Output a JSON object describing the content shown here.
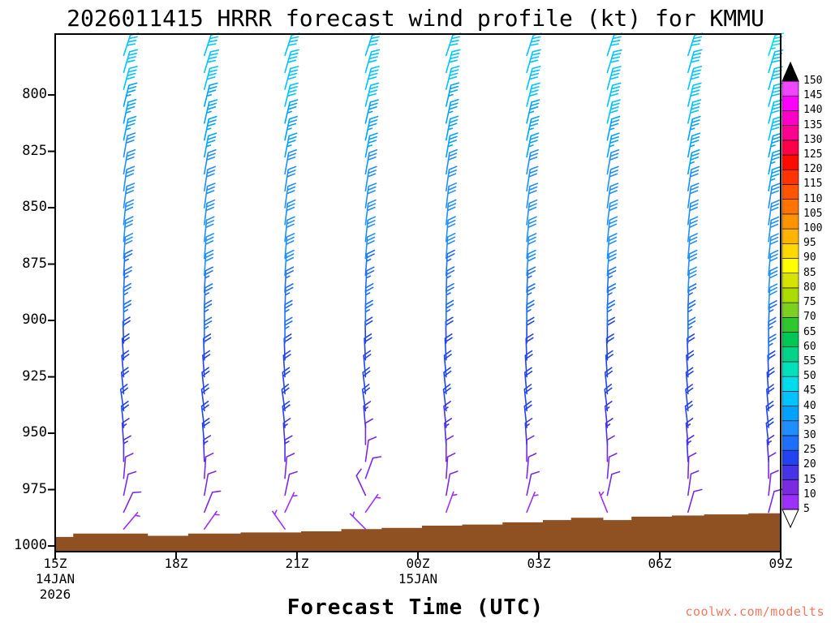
{
  "page": {
    "title": "2026011415 HRRR forecast wind profile (kt) for KMMU",
    "x_axis_label": "Forecast Time (UTC)",
    "watermark": "coolwx.com/modelts",
    "watermark_color": "#f4785f"
  },
  "chart_data": {
    "type": "wind-profile-barbs",
    "units": "kt",
    "pressure_ticks_hpa": [
      800,
      825,
      850,
      875,
      900,
      925,
      950,
      975,
      1000
    ],
    "pressure_range_hpa": [
      773,
      1002.5
    ],
    "hour_range": [
      0,
      18
    ],
    "time_ticks": [
      {
        "label": "15Z",
        "hour": 0
      },
      {
        "label": "18Z",
        "hour": 3
      },
      {
        "label": "21Z",
        "hour": 6
      },
      {
        "label": "00Z",
        "hour": 9
      },
      {
        "label": "03Z",
        "hour": 12
      },
      {
        "label": "06Z",
        "hour": 15
      },
      {
        "label": "09Z",
        "hour": 18
      }
    ],
    "date_labels": [
      {
        "text": "14JAN",
        "hour": 0,
        "row": 0
      },
      {
        "text": "2026",
        "hour": 0,
        "row": 1
      },
      {
        "text": "15JAN",
        "hour": 9,
        "row": 0
      }
    ],
    "colorbar": {
      "tick_values": [
        5,
        10,
        15,
        20,
        25,
        30,
        35,
        40,
        45,
        50,
        55,
        60,
        65,
        70,
        75,
        80,
        85,
        90,
        95,
        100,
        105,
        110,
        115,
        120,
        125,
        130,
        135,
        140,
        145,
        150
      ],
      "cell_colors": [
        "#9b30ff",
        "#7a2be2",
        "#4733e8",
        "#2144f0",
        "#1f6fff",
        "#1f8fff",
        "#00a2ff",
        "#00c3ff",
        "#00dcec",
        "#00e0bb",
        "#00d488",
        "#00c655",
        "#2ec82e",
        "#7ed01f",
        "#abdc00",
        "#d6e300",
        "#ffff00",
        "#ffd800",
        "#ffb400",
        "#ff9400",
        "#ff7400",
        "#ff5400",
        "#ff3400",
        "#ff0c00",
        "#ff0048",
        "#ff0090",
        "#ff00c8",
        "#ff00ff",
        "#f046ff"
      ],
      "over_color": "#000000",
      "under_color": "#ffffff"
    },
    "terrain": {
      "color": "#8f5122",
      "steps_hour_pressure": [
        [
          0,
          996
        ],
        [
          0.45,
          994.5
        ],
        [
          2.3,
          995.5
        ],
        [
          3.3,
          994.5
        ],
        [
          4.6,
          994
        ],
        [
          6.1,
          993.5
        ],
        [
          7.1,
          992.5
        ],
        [
          8.1,
          992
        ],
        [
          9.1,
          991
        ],
        [
          10.1,
          990.5
        ],
        [
          11.1,
          989.5
        ],
        [
          12.1,
          988.5
        ],
        [
          12.8,
          987.5
        ],
        [
          13.6,
          988.5
        ],
        [
          14.3,
          987
        ],
        [
          15.3,
          986.5
        ],
        [
          16.1,
          986
        ],
        [
          17.2,
          985.5
        ],
        [
          18,
          985.5
        ]
      ]
    },
    "levels_hpa": [
      992.5,
      985,
      977.5,
      970,
      962.5,
      955,
      947.5,
      940,
      932.5,
      925,
      917.5,
      910,
      902.5,
      895,
      887.5,
      880,
      872.5,
      865,
      857.5,
      850,
      842.5,
      835,
      827.5,
      820,
      812.5,
      805,
      797.5,
      790,
      782.5
    ],
    "columns": [
      {
        "hour": 1.7,
        "speeds_kt": [
          5,
          8,
          10,
          12,
          15,
          15,
          18,
          20,
          20,
          20,
          22,
          22,
          25,
          25,
          25,
          25,
          28,
          28,
          30,
          30,
          30,
          32,
          32,
          35,
          35,
          35,
          38,
          38,
          40
        ],
        "dirs_tilt_deg": [
          40,
          25,
          12,
          5,
          0,
          -4,
          -6,
          -8,
          -6,
          -5,
          -4,
          -2,
          0,
          0,
          2,
          3,
          4,
          5,
          6,
          8,
          8,
          10,
          10,
          12,
          12,
          14,
          15,
          16,
          18
        ]
      },
      {
        "hour": 3.7,
        "speeds_kt": [
          5,
          8,
          10,
          12,
          15,
          18,
          18,
          20,
          20,
          22,
          22,
          25,
          25,
          25,
          25,
          28,
          28,
          30,
          30,
          30,
          32,
          32,
          35,
          35,
          35,
          35,
          38,
          40,
          40
        ],
        "dirs_tilt_deg": [
          35,
          22,
          10,
          4,
          -2,
          -5,
          -7,
          -7,
          -6,
          -4,
          -2,
          0,
          0,
          2,
          3,
          4,
          5,
          6,
          7,
          8,
          9,
          10,
          11,
          12,
          13,
          14,
          15,
          17,
          18
        ]
      },
      {
        "hour": 5.7,
        "speeds_kt": [
          5,
          7,
          10,
          12,
          15,
          15,
          18,
          18,
          20,
          20,
          22,
          25,
          25,
          25,
          25,
          28,
          28,
          30,
          30,
          30,
          32,
          32,
          35,
          35,
          35,
          38,
          38,
          40,
          40
        ],
        "dirs_tilt_deg": [
          -35,
          25,
          12,
          5,
          0,
          -4,
          -6,
          -8,
          -6,
          -4,
          -2,
          0,
          0,
          2,
          3,
          4,
          5,
          6,
          7,
          8,
          9,
          10,
          11,
          12,
          13,
          14,
          15,
          16,
          18
        ]
      },
      {
        "hour": 7.7,
        "speeds_kt": [
          5,
          5,
          8,
          10,
          10,
          12,
          15,
          18,
          20,
          20,
          22,
          22,
          25,
          25,
          25,
          25,
          28,
          30,
          30,
          30,
          32,
          32,
          35,
          35,
          35,
          38,
          38,
          40,
          40
        ],
        "dirs_tilt_deg": [
          -45,
          35,
          -25,
          20,
          8,
          0,
          -5,
          -8,
          -7,
          -5,
          -3,
          -1,
          0,
          1,
          3,
          4,
          5,
          6,
          7,
          8,
          9,
          10,
          11,
          12,
          13,
          14,
          15,
          16,
          18
        ]
      },
      {
        "hour": 9.7,
        "speeds_kt": [
          5,
          5,
          8,
          10,
          12,
          15,
          15,
          18,
          20,
          20,
          20,
          22,
          25,
          25,
          25,
          25,
          28,
          28,
          30,
          30,
          30,
          32,
          35,
          35,
          35,
          35,
          38,
          38,
          40
        ],
        "dirs_tilt_deg": [
          30,
          20,
          10,
          4,
          0,
          -4,
          -6,
          -7,
          -6,
          -5,
          -3,
          -1,
          0,
          1,
          2,
          3,
          4,
          5,
          6,
          7,
          8,
          9,
          10,
          11,
          12,
          13,
          14,
          16,
          18
        ]
      },
      {
        "hour": 11.7,
        "speeds_kt": [
          5,
          5,
          8,
          10,
          12,
          15,
          18,
          18,
          20,
          20,
          22,
          22,
          25,
          25,
          25,
          28,
          28,
          30,
          30,
          30,
          32,
          32,
          35,
          35,
          35,
          38,
          38,
          40,
          40
        ],
        "dirs_tilt_deg": [
          -30,
          22,
          12,
          5,
          0,
          -4,
          -6,
          -6,
          -5,
          -4,
          -2,
          0,
          0,
          2,
          3,
          4,
          5,
          6,
          7,
          8,
          9,
          10,
          11,
          12,
          13,
          14,
          15,
          16,
          18
        ]
      },
      {
        "hour": 13.7,
        "speeds_kt": [
          5,
          5,
          8,
          10,
          12,
          15,
          15,
          18,
          20,
          20,
          22,
          22,
          25,
          25,
          25,
          28,
          28,
          30,
          30,
          30,
          32,
          32,
          35,
          35,
          38,
          38,
          38,
          40,
          40
        ],
        "dirs_tilt_deg": [
          35,
          -22,
          12,
          5,
          0,
          -4,
          -6,
          -7,
          -6,
          -4,
          -2,
          0,
          0,
          2,
          3,
          4,
          5,
          6,
          7,
          8,
          9,
          10,
          11,
          12,
          13,
          14,
          15,
          17,
          18
        ]
      },
      {
        "hour": 15.7,
        "speeds_kt": [
          5,
          8,
          10,
          12,
          15,
          15,
          18,
          20,
          20,
          22,
          22,
          25,
          25,
          25,
          28,
          28,
          30,
          30,
          30,
          32,
          32,
          35,
          35,
          35,
          38,
          38,
          40,
          40,
          40
        ],
        "dirs_tilt_deg": [
          28,
          16,
          8,
          2,
          -3,
          -5,
          -7,
          -6,
          -5,
          -4,
          -2,
          0,
          0,
          2,
          3,
          4,
          5,
          6,
          7,
          8,
          9,
          10,
          11,
          12,
          13,
          14,
          15,
          16,
          18
        ]
      },
      {
        "hour": 17.7,
        "speeds_kt": [
          8,
          8,
          10,
          12,
          15,
          18,
          18,
          20,
          20,
          22,
          25,
          25,
          25,
          28,
          28,
          30,
          30,
          30,
          32,
          32,
          35,
          35,
          35,
          38,
          38,
          40,
          40,
          42,
          45
        ],
        "dirs_tilt_deg": [
          -25,
          15,
          6,
          0,
          -4,
          -6,
          -6,
          -5,
          -4,
          -2,
          0,
          0,
          2,
          3,
          4,
          5,
          6,
          7,
          8,
          9,
          10,
          11,
          12,
          13,
          14,
          15,
          16,
          17,
          18
        ]
      }
    ]
  }
}
